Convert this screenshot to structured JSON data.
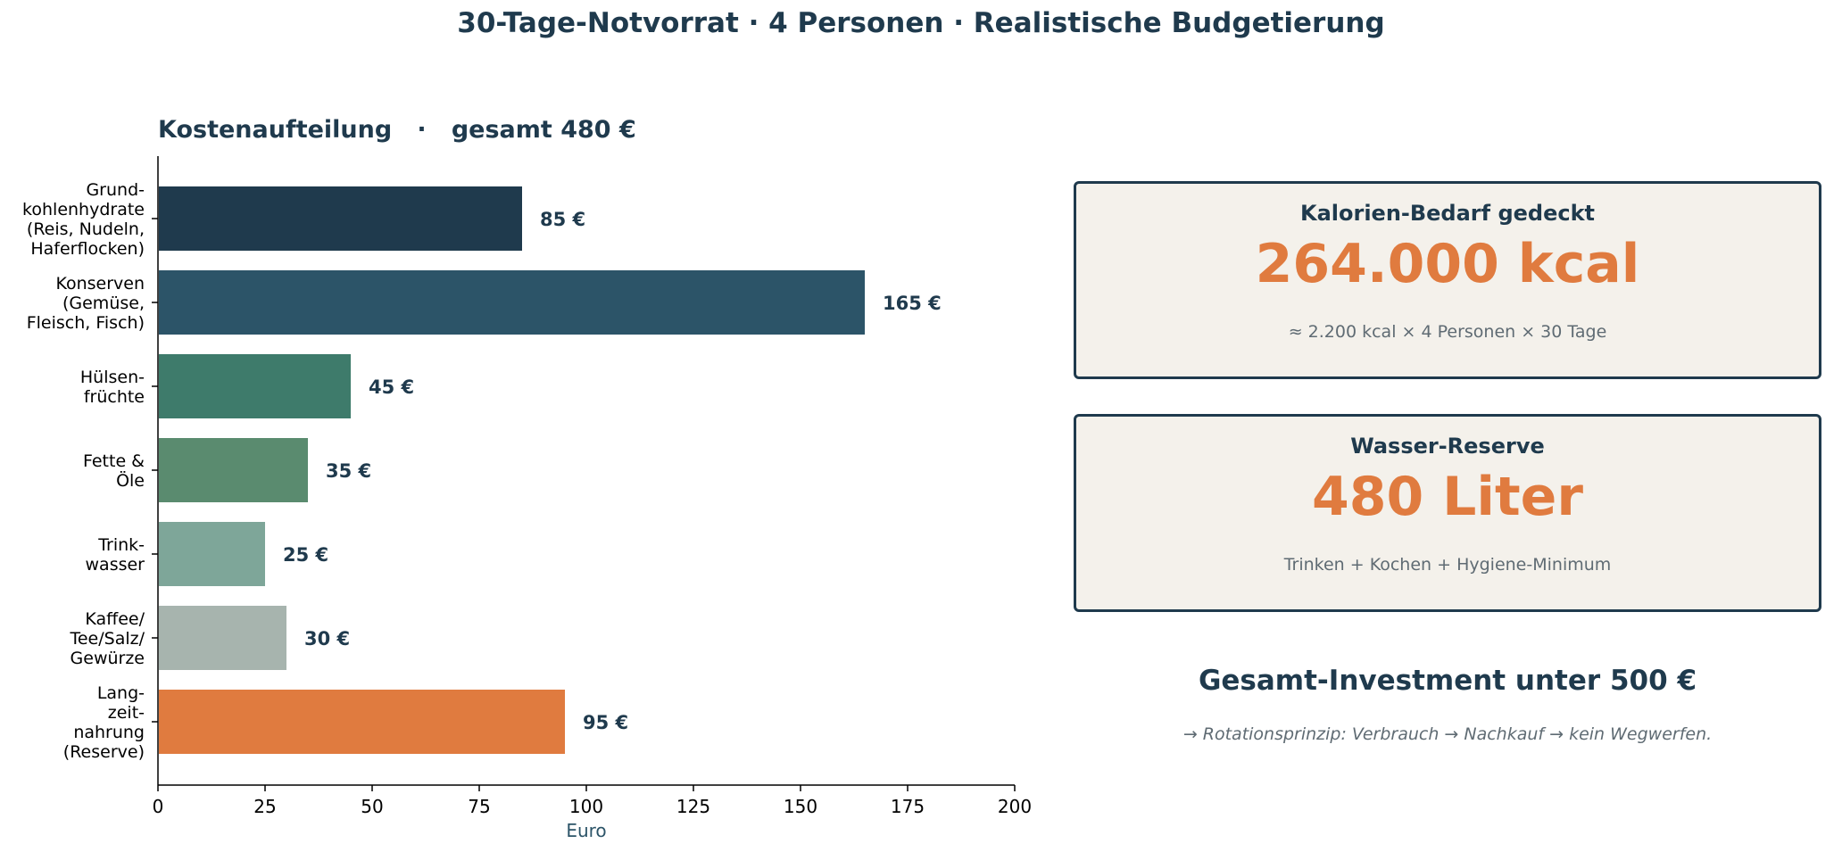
{
  "title": "30-Tage-Notvorrat · 4 Personen · Realistische Budgetierung",
  "chart_data": {
    "type": "bar",
    "orientation": "horizontal",
    "title": "Kostenaufteilung   ·   gesamt 480 €",
    "categories": [
      [
        "Grund-",
        "kohlenhydrate",
        "(Reis, Nudeln,",
        "Haferflocken)"
      ],
      [
        "Konserven",
        "(Gemüse,",
        "Fleisch, Fisch)"
      ],
      [
        "Hülsen-",
        "früchte"
      ],
      [
        "Fette &",
        "Öle"
      ],
      [
        "Trink-",
        "wasser"
      ],
      [
        "Kaffee/",
        "Tee/Salz/",
        "Gewürze"
      ],
      [
        "Lang-",
        "zeit-",
        "nahrung",
        "(Reserve)"
      ]
    ],
    "values": [
      85,
      165,
      45,
      35,
      25,
      30,
      95
    ],
    "value_labels": [
      "85 €",
      "165 €",
      "45 €",
      "35 €",
      "25 €",
      "30 €",
      "95 €"
    ],
    "colors": [
      "#1f3a4d",
      "#2c5468",
      "#3e7b6b",
      "#5a8b6f",
      "#7ea699",
      "#a7b4ae",
      "#e07b3f"
    ],
    "xlabel": "Euro",
    "ylabel": "",
    "xlim": [
      0,
      200
    ],
    "xticks": [
      0,
      25,
      50,
      75,
      100,
      125,
      150,
      175,
      200
    ],
    "grid": false
  },
  "calories": {
    "heading": "Kalorien-Bedarf gedeckt",
    "value": "264.000 kcal",
    "note": "≈ 2.200 kcal × 4 Personen × 30 Tage"
  },
  "water": {
    "heading": "Wasser-Reserve",
    "value": "480 Liter",
    "note": "Trinken + Kochen + Hygiene-Minimum"
  },
  "total": {
    "heading": "Gesamt-Investment unter 500 €",
    "note": "→ Rotationsprinzip: Verbrauch → Nachkauf → kein Wegwerfen."
  }
}
